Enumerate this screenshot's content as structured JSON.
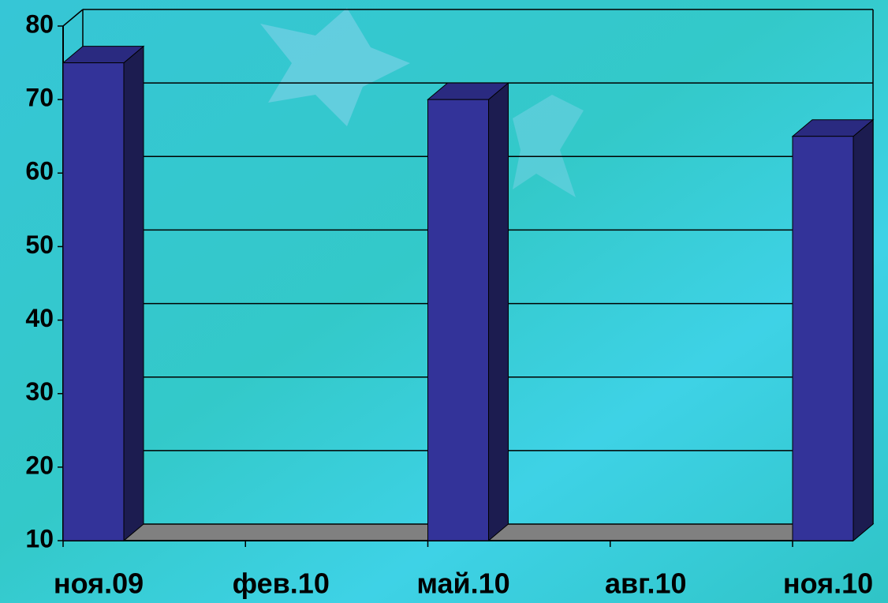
{
  "chart_data": {
    "type": "bar",
    "categories": [
      "ноя.09",
      "фев.10",
      "май.10",
      "авг.10",
      "ноя.10"
    ],
    "values": [
      75,
      null,
      70,
      null,
      65
    ],
    "color": "#333399",
    "ylim": [
      10,
      80
    ],
    "yticks": [
      10,
      20,
      30,
      40,
      50,
      60,
      70,
      80
    ],
    "grid": true
  }
}
